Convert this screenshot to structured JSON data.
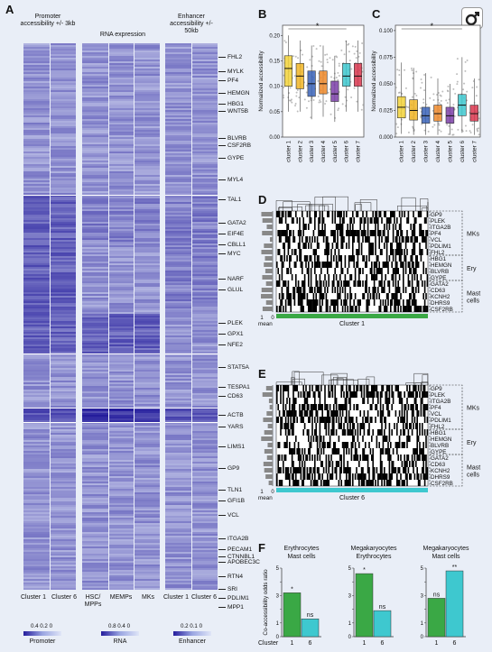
{
  "panels": {
    "A": "A",
    "B": "B",
    "C": "C",
    "D": "D",
    "E": "E",
    "F": "F"
  },
  "heatmap": {
    "header_promoter": "Promoter accessibility +/- 3kb",
    "header_rna": "RNA expression",
    "header_enhancer": "Enhancer accessibility +/- 50kb",
    "columns_promoter": [
      "Cluster 1",
      "Cluster 6"
    ],
    "columns_rna": [
      "HSC/ MPPs",
      "MEMPs",
      "MKs"
    ],
    "columns_enhancer": [
      "Cluster 1",
      "Cluster 6"
    ],
    "genes": [
      "FHL2",
      "MYLK",
      "PF4",
      "HEMGN",
      "HBG1",
      "WNT5B",
      "BLVRB",
      "CSF2RB",
      "GYPE",
      "MYL4",
      "TAL1",
      "GATA2",
      "EIF4E",
      "CBLL1",
      "MYC",
      "NARF",
      "GLUL",
      "PLEK",
      "GPX1",
      "NFE2",
      "STAT5A",
      "TESPA1",
      "CD63",
      "ACTB",
      "YARS",
      "LIMS1",
      "GP9",
      "TLN1",
      "GFI1B",
      "VCL",
      "ITGA2B",
      "PECAM1",
      "CTNNBL1",
      "APOBEC3C",
      "RTN4",
      "SRI",
      "PDLIM1",
      "MPP1"
    ],
    "scales": [
      {
        "ticks": "0.4  0.2  0",
        "label": "Promoter"
      },
      {
        "ticks": "0.8  0.4  0",
        "label": "RNA"
      },
      {
        "ticks": "0.2  0.1  0",
        "label": "Enhancer"
      }
    ]
  },
  "chart_data": [
    {
      "type": "box",
      "panel": "B",
      "ylabel": "Normalized accessibility",
      "categories": [
        "cluster 1",
        "cluster 2",
        "cluster 3",
        "cluster 4",
        "cluster 5",
        "cluster 6",
        "cluster 7"
      ],
      "yticks": [
        "0.00",
        "0.05",
        "0.10",
        "0.15",
        "0.20"
      ],
      "ylim": [
        0,
        0.22
      ],
      "medians": [
        0.135,
        0.12,
        0.105,
        0.105,
        0.085,
        0.12,
        0.12
      ],
      "q1": [
        0.1,
        0.095,
        0.08,
        0.085,
        0.07,
        0.1,
        0.1
      ],
      "q3": [
        0.16,
        0.145,
        0.13,
        0.13,
        0.11,
        0.145,
        0.145
      ],
      "whisker_low": [
        0.05,
        0.05,
        0.035,
        0.04,
        0.03,
        0.05,
        0.05
      ],
      "whisker_high": [
        0.2,
        0.19,
        0.18,
        0.18,
        0.16,
        0.19,
        0.19
      ],
      "colors": [
        "#f2d23a",
        "#f1b524",
        "#3a63b8",
        "#ef8a2a",
        "#7b3fa8",
        "#3ec8cf",
        "#d8364e"
      ],
      "significance": "*"
    },
    {
      "type": "box",
      "panel": "C",
      "ylabel": "Normalized accessibility",
      "categories": [
        "cluster 1",
        "cluster 2",
        "cluster 3",
        "cluster 4",
        "cluster 5",
        "cluster 6",
        "cluster 7"
      ],
      "yticks": [
        "0.000",
        "0.025",
        "0.050",
        "0.075",
        "0.100"
      ],
      "ylim": [
        0,
        0.105
      ],
      "medians": [
        0.028,
        0.025,
        0.02,
        0.022,
        0.02,
        0.03,
        0.022
      ],
      "q1": [
        0.018,
        0.016,
        0.013,
        0.015,
        0.013,
        0.02,
        0.015
      ],
      "q3": [
        0.038,
        0.035,
        0.028,
        0.03,
        0.028,
        0.04,
        0.03
      ],
      "whisker_low": [
        0.003,
        0.002,
        0.002,
        0.002,
        0.002,
        0.004,
        0.002
      ],
      "whisker_high": [
        0.07,
        0.065,
        0.06,
        0.055,
        0.05,
        0.075,
        0.055
      ],
      "colors": [
        "#f2d23a",
        "#f1b524",
        "#3a63b8",
        "#ef8a2a",
        "#7b3fa8",
        "#3ec8cf",
        "#d8364e"
      ],
      "significance": "*"
    },
    {
      "type": "bar",
      "panel": "F",
      "ylabel": "Co-accessibility odds ratio",
      "xlabel": "Cluster",
      "groups": [
        {
          "title": "Erythrocytes\nMast cells",
          "categories": [
            "1",
            "6"
          ],
          "values": [
            3.2,
            1.3
          ],
          "labels": [
            "*",
            "ns"
          ],
          "ylim": [
            0,
            5
          ]
        },
        {
          "title": "Megakaryocytes\nErythrocytes",
          "categories": [
            "1",
            "6"
          ],
          "values": [
            4.6,
            1.9
          ],
          "labels": [
            "*",
            "ns"
          ],
          "ylim": [
            0,
            5
          ]
        },
        {
          "title": "Megakaryocytes\nMast cells",
          "categories": [
            "1",
            "6"
          ],
          "values": [
            2.8,
            4.8
          ],
          "labels": [
            "ns",
            "**"
          ],
          "ylim": [
            0,
            5
          ]
        }
      ],
      "colors": [
        "#3aa845",
        "#3ec8cf"
      ]
    }
  ],
  "panelD": {
    "genes": [
      "GP9",
      "PLEK",
      "ITGA2B",
      "PF4",
      "VCL",
      "PDLIM1",
      "FHL2",
      "HBG1",
      "HEMGN",
      "BLVRB",
      "GYPE",
      "GATA2",
      "CD63",
      "KCNH2",
      "DHRS9",
      "CSF2RB"
    ],
    "groups": [
      "MKs",
      "Ery",
      "Mast cells"
    ],
    "mean_axis": "1",
    "mean_zero": "0",
    "mean_label": "mean",
    "cluster_label": "Cluster 1",
    "bar_color": "#3aa845"
  },
  "panelE": {
    "genes": [
      "GP9",
      "PLEK",
      "ITGA2B",
      "PF4",
      "VCL",
      "PDLIM1",
      "FHL2",
      "HBG1",
      "HEMGN",
      "BLVRB",
      "GYPE",
      "GATA2",
      "CD63",
      "KCNH2",
      "DHRS9",
      "CSF2RB"
    ],
    "groups": [
      "MKs",
      "Ery",
      "Mast cells"
    ],
    "mean_axis": "1",
    "mean_zero": "0",
    "mean_label": "mean",
    "cluster_label": "Cluster 6",
    "bar_color": "#3ec8cf"
  }
}
